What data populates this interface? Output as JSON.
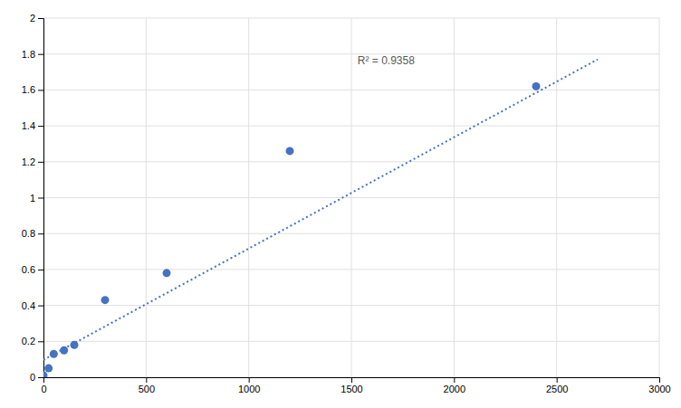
{
  "chart_data": {
    "type": "scatter",
    "series": [
      {
        "type": "scatter",
        "color": "#4472c4",
        "marker": "circle",
        "x": [
          0,
          25,
          50,
          100,
          150,
          300,
          600,
          1200,
          2400
        ],
        "values": [
          0.01,
          0.05,
          0.13,
          0.15,
          0.18,
          0.43,
          0.58,
          1.26,
          1.62
        ]
      },
      {
        "type": "line",
        "color": "#4472c4",
        "line_style": "dotted",
        "x": [
          0,
          2700
        ],
        "values": [
          0.097,
          1.77
        ]
      }
    ],
    "annotations": [
      {
        "text": "R² = 0.9358",
        "x": 1530,
        "y": 1.8
      }
    ],
    "xlim": [
      0,
      3000
    ],
    "ylim": [
      0,
      2
    ],
    "xticks": [
      0,
      500,
      1000,
      1500,
      2000,
      2500,
      3000
    ],
    "yticks": [
      0,
      0.2,
      0.4,
      0.6,
      0.8,
      1,
      1.2,
      1.4,
      1.6,
      1.8,
      2
    ],
    "grid": true
  }
}
